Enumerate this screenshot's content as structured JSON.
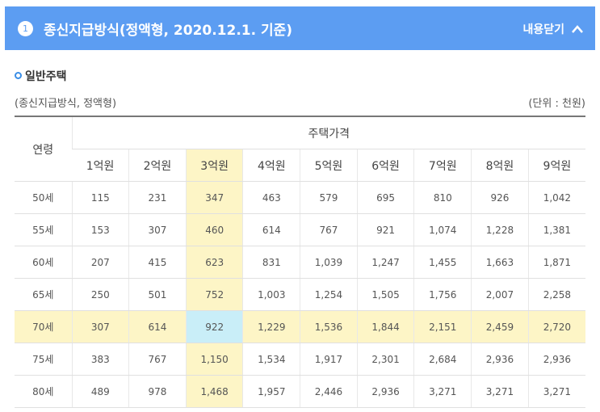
{
  "header": {
    "number": "1",
    "title": "종신지급방식(정액형, 2020.12.1. 기준)",
    "toggle": "내용닫기"
  },
  "section": {
    "title": "일반주택",
    "subtitle": "(종신지급방식, 정액형)",
    "unit": "(단위 : 천원)"
  },
  "table": {
    "row_header": "연령",
    "group_header": "주택가격",
    "columns": [
      "1억원",
      "2억원",
      "3억원",
      "4억원",
      "5억원",
      "6억원",
      "7억원",
      "8억원",
      "9억원"
    ],
    "rows": [
      [
        "50세",
        "115",
        "231",
        "347",
        "463",
        "579",
        "695",
        "810",
        "926",
        "1,042"
      ],
      [
        "55세",
        "153",
        "307",
        "460",
        "614",
        "767",
        "921",
        "1,074",
        "1,228",
        "1,381"
      ],
      [
        "60세",
        "207",
        "415",
        "623",
        "831",
        "1,039",
        "1,247",
        "1,455",
        "1,663",
        "1,871"
      ],
      [
        "65세",
        "250",
        "501",
        "752",
        "1,003",
        "1,254",
        "1,505",
        "1,756",
        "2,007",
        "2,258"
      ],
      [
        "70세",
        "307",
        "614",
        "922",
        "1,229",
        "1,536",
        "1,844",
        "2,151",
        "2,459",
        "2,720"
      ],
      [
        "75세",
        "383",
        "767",
        "1,150",
        "1,534",
        "1,917",
        "2,301",
        "2,684",
        "2,936",
        "2,936"
      ],
      [
        "80세",
        "489",
        "978",
        "1,468",
        "1,957",
        "2,446",
        "2,936",
        "3,271",
        "3,271",
        "3,271"
      ]
    ]
  }
}
